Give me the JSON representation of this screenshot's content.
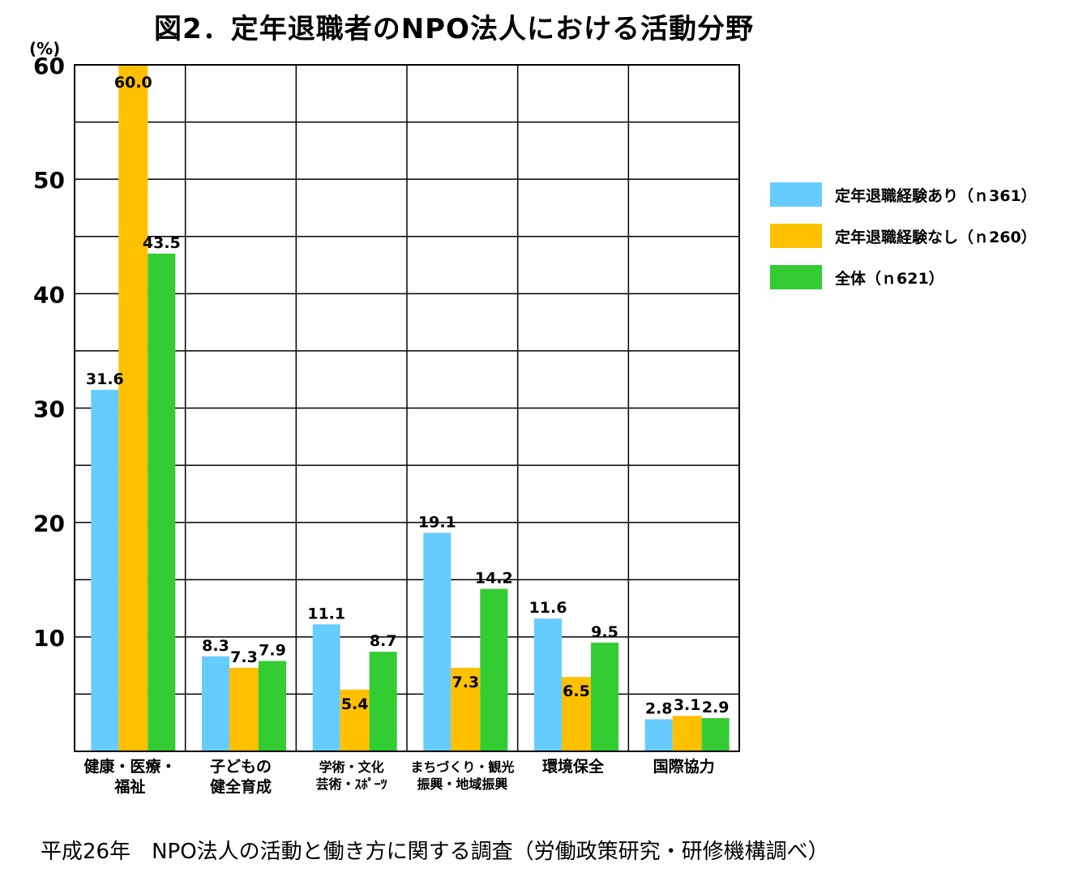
{
  "header": {
    "title": "図2．定年退職者のNPO法人における活動分野",
    "unit": "(%)"
  },
  "chart_data": {
    "type": "bar",
    "title": "図2．定年退職者のNPO法人における活動分野",
    "ylabel": "(%)",
    "ylim": [
      0,
      60
    ],
    "yticks": [
      10,
      20,
      30,
      40,
      50,
      60
    ],
    "categories": [
      [
        "健康・医療・",
        "福祉"
      ],
      [
        "子どもの",
        "健全育成"
      ],
      [
        "学術・文化",
        "芸術・ｽﾎﾟｰﾂ"
      ],
      [
        "まちづくり・観光",
        "振興・地域振興"
      ],
      [
        "環境保全"
      ],
      [
        "国際協力"
      ]
    ],
    "series": [
      {
        "name": "定年退職経験あり（ｎ361）",
        "color": "#66CCFF",
        "values": [
          31.6,
          8.3,
          11.1,
          19.1,
          11.6,
          2.8
        ]
      },
      {
        "name": "定年退職経験なし（ｎ260）",
        "color": "#FFC000",
        "values": [
          60.0,
          7.3,
          5.4,
          7.3,
          6.5,
          3.1
        ]
      },
      {
        "name": "全体（ｎ621）",
        "color": "#33CC33",
        "values": [
          43.5,
          7.9,
          8.7,
          14.2,
          9.5,
          2.9
        ]
      }
    ],
    "grid": true,
    "legend_position": "right"
  },
  "footer": {
    "source": "平成26年　NPO法人の活動と働き方に関する調査（労働政策研究・研修機構調べ）"
  }
}
